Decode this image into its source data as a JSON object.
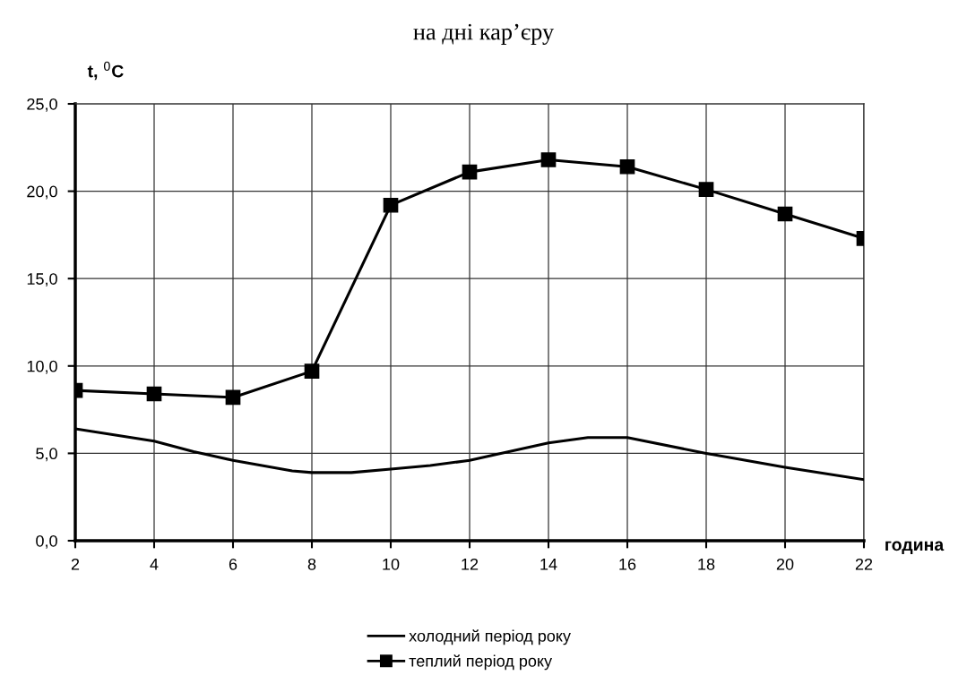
{
  "chart_data": {
    "type": "line",
    "title": "на дні кар’єру",
    "xlabel": "година",
    "ylabel": "t, $^{0}$C",
    "x": [
      2,
      4,
      6,
      8,
      10,
      12,
      14,
      16,
      18,
      20,
      22
    ],
    "series": [
      {
        "name": "холодний період року",
        "color": "#000000",
        "marker": "none",
        "x": [
          2,
          4,
          5,
          6,
          7.5,
          8,
          9,
          10,
          11,
          12,
          14,
          15,
          16,
          18,
          20,
          22
        ],
        "values": [
          6.4,
          5.7,
          5.1,
          4.6,
          4.0,
          3.9,
          3.9,
          4.1,
          4.3,
          4.6,
          5.6,
          5.9,
          5.9,
          5.0,
          4.2,
          3.5
        ]
      },
      {
        "name": "теплий період року",
        "color": "#000000",
        "marker": "square",
        "values": [
          8.6,
          8.4,
          8.2,
          9.7,
          19.2,
          21.1,
          21.8,
          21.4,
          20.1,
          18.7,
          17.3
        ]
      }
    ],
    "xlim": [
      2,
      22
    ],
    "xticks": [
      2,
      4,
      6,
      8,
      10,
      12,
      14,
      16,
      18,
      20,
      22
    ],
    "ylim": [
      0,
      25
    ],
    "yticks": [
      {
        "value": 0,
        "label": "0,0"
      },
      {
        "value": 5,
        "label": "5,0"
      },
      {
        "value": 10,
        "label": "10,0"
      },
      {
        "value": 15,
        "label": "15,0"
      },
      {
        "value": 20,
        "label": "20,0"
      },
      {
        "value": 25,
        "label": "25,0"
      }
    ],
    "grid": true,
    "legend": "bottom",
    "line_style": "solid"
  }
}
